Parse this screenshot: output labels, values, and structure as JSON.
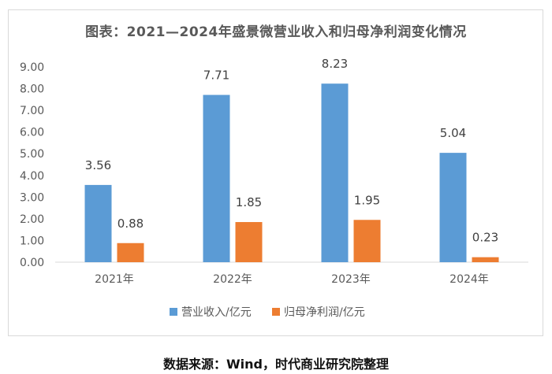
{
  "chart_data": {
    "type": "bar",
    "title": "图表：2021—2024年盛景微营业收入和归母净利润变化情况",
    "categories": [
      "2021年",
      "2022年",
      "2023年",
      "2024年"
    ],
    "series": [
      {
        "name": "营业收入/亿元",
        "values": [
          3.56,
          7.71,
          8.23,
          5.04
        ],
        "color": "#5b9bd5"
      },
      {
        "name": "归母净利润/亿元",
        "values": [
          0.88,
          1.85,
          1.95,
          0.23
        ],
        "color": "#ed7d31"
      }
    ],
    "ylim": [
      0,
      9
    ],
    "y_ticks": [
      "0.00",
      "1.00",
      "2.00",
      "3.00",
      "4.00",
      "5.00",
      "6.00",
      "7.00",
      "8.00",
      "9.00"
    ],
    "data_labels": [
      [
        "3.56",
        "7.71",
        "8.23",
        "5.04"
      ],
      [
        "0.88",
        "1.85",
        "1.95",
        "0.23"
      ]
    ],
    "grid": false,
    "legend_position": "bottom"
  },
  "caption": "数据来源：Wind，时代商业研究院整理"
}
